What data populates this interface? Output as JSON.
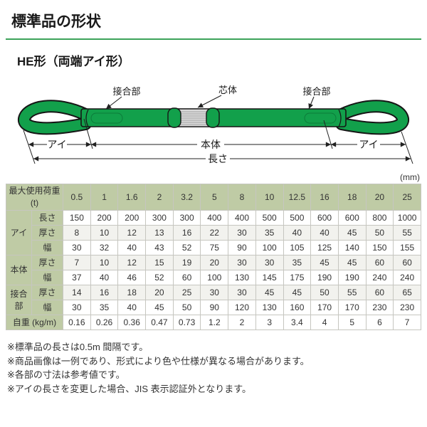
{
  "page": {
    "title": "標準品の形状",
    "subtitle": "HE形（両端アイ形）"
  },
  "colors": {
    "accent_green": "#3da35a",
    "table_header_green": "#bfcba5",
    "webbing_green": "#12a04b",
    "core_gray": "#d9d9d9"
  },
  "diagram": {
    "labels": {
      "joint_left": "接合部",
      "core": "芯体",
      "joint_right": "接合部",
      "eye_left": "アイ",
      "body": "本体",
      "eye_right": "アイ",
      "length": "長さ"
    }
  },
  "table": {
    "unit_note": "(mm)",
    "header_label": "最大使用荷重 (t)",
    "load_columns": [
      "0.5",
      "1",
      "1.6",
      "2",
      "3.2",
      "5",
      "8",
      "10",
      "12.5",
      "16",
      "18",
      "20",
      "25"
    ],
    "row_groups": [
      {
        "group": "アイ",
        "rows": [
          {
            "label": "長さ",
            "values": [
              "150",
              "200",
              "200",
              "300",
              "300",
              "400",
              "400",
              "500",
              "500",
              "600",
              "600",
              "800",
              "1000"
            ]
          },
          {
            "label": "厚さ",
            "values": [
              "8",
              "10",
              "12",
              "13",
              "16",
              "22",
              "30",
              "35",
              "40",
              "40",
              "45",
              "50",
              "55"
            ]
          },
          {
            "label": "幅",
            "values": [
              "30",
              "32",
              "40",
              "43",
              "52",
              "75",
              "90",
              "100",
              "105",
              "125",
              "140",
              "150",
              "155"
            ]
          }
        ]
      },
      {
        "group": "本体",
        "rows": [
          {
            "label": "厚さ",
            "values": [
              "7",
              "10",
              "12",
              "15",
              "19",
              "20",
              "30",
              "30",
              "35",
              "45",
              "45",
              "60",
              "60"
            ]
          },
          {
            "label": "幅",
            "values": [
              "37",
              "40",
              "46",
              "52",
              "60",
              "100",
              "130",
              "145",
              "175",
              "190",
              "190",
              "240",
              "240"
            ]
          }
        ]
      },
      {
        "group": "接合部",
        "rows": [
          {
            "label": "厚さ",
            "values": [
              "14",
              "16",
              "18",
              "20",
              "25",
              "30",
              "30",
              "45",
              "45",
              "50",
              "55",
              "60",
              "65"
            ]
          },
          {
            "label": "幅",
            "values": [
              "30",
              "35",
              "40",
              "45",
              "50",
              "90",
              "120",
              "130",
              "160",
              "170",
              "170",
              "230",
              "230"
            ]
          }
        ]
      }
    ],
    "weight_row": {
      "label": "自重 (kg/m)",
      "values": [
        "0.16",
        "0.26",
        "0.36",
        "0.47",
        "0.73",
        "1.2",
        "2",
        "3",
        "3.4",
        "4",
        "5",
        "6",
        "7"
      ]
    }
  },
  "notes": [
    "※標準品の長さは0.5m 間隔です。",
    "※商品画像は一例であり、形式により色や仕様が異なる場合があります。",
    "※各部の寸法は参考値です。",
    "※アイの長さを変更した場合、JIS 表示認証外となります。"
  ]
}
